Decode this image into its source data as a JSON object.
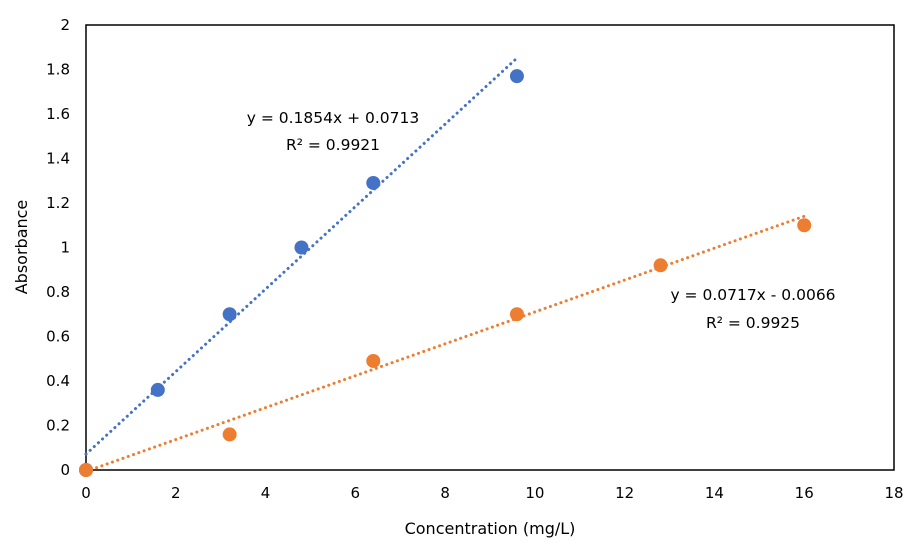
{
  "chart_data": {
    "type": "scatter",
    "title": "",
    "xlabel": "Concentration (mg/L)",
    "ylabel": "Absorbance",
    "xlim": [
      0,
      18
    ],
    "ylim": [
      0,
      2
    ],
    "x_ticks": [
      "0",
      "2",
      "4",
      "6",
      "8",
      "10",
      "12",
      "14",
      "16",
      "18"
    ],
    "y_ticks": [
      "0",
      "0.2",
      "0.4",
      "0.6",
      "0.8",
      "1",
      "1.2",
      "1.4",
      "1.6",
      "1.8",
      "2"
    ],
    "grid": false,
    "legend": "none",
    "series": [
      {
        "color": "#4472C4",
        "x": [
          0,
          1.6,
          3.2,
          4.8,
          6.4,
          9.6
        ],
        "y": [
          0,
          0.36,
          0.7,
          1.0,
          1.29,
          1.77
        ],
        "trendline": {
          "slope": 0.1854,
          "intercept": 0.0713,
          "x_range": [
            0,
            9.6
          ],
          "style": "dotted"
        },
        "equation": "y = 0.1854x + 0.0713",
        "r2": "R² = 0.9921"
      },
      {
        "color": "#ED7D31",
        "x": [
          0,
          3.2,
          6.4,
          9.6,
          12.8,
          16
        ],
        "y": [
          0,
          0.16,
          0.49,
          0.7,
          0.92,
          1.1
        ],
        "trendline": {
          "slope": 0.0717,
          "intercept": -0.0066,
          "x_range": [
            0,
            16
          ],
          "style": "dotted"
        },
        "equation": "y = 0.0717x - 0.0066",
        "r2": "R² = 0.9925"
      }
    ]
  }
}
